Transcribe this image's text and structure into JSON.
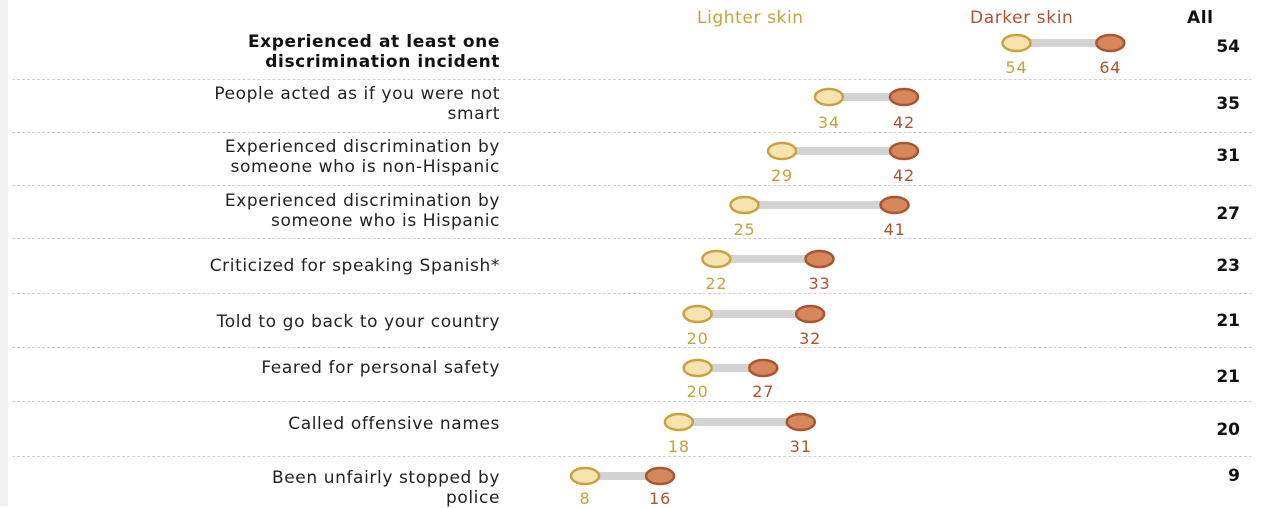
{
  "legend": {
    "lighter": "Lighter skin",
    "darker": "Darker skin",
    "all": "All"
  },
  "colors": {
    "lighter_fill": "#f6e3b0",
    "lighter_stroke": "#c9a13d",
    "lighter_text": "#c9a13d",
    "darker_fill": "#d7875c",
    "darker_stroke": "#a9552d",
    "darker_text": "#a9552d",
    "connector": "#d3d3d3"
  },
  "chart_data": {
    "type": "dot-range",
    "series": [
      {
        "name": "Lighter skin",
        "values": [
          54,
          34,
          29,
          25,
          22,
          20,
          20,
          18,
          8
        ]
      },
      {
        "name": "Darker skin",
        "values": [
          64,
          42,
          42,
          41,
          33,
          32,
          27,
          31,
          16
        ]
      }
    ],
    "rows": [
      {
        "label": "Experienced at least one discrimination incident",
        "lines": [
          "Experienced at least one",
          "discrimination incident"
        ],
        "lighter": 54,
        "darker": 64,
        "all": 54,
        "bold": true
      },
      {
        "label": "People acted as if you were not smart",
        "lines": [
          "People acted as if you were not",
          "smart"
        ],
        "lighter": 34,
        "darker": 42,
        "all": 35,
        "bold": false
      },
      {
        "label": "Experienced discrimination by someone who is non-Hispanic",
        "lines": [
          "Experienced discrimination by",
          "someone who is non-Hispanic"
        ],
        "lighter": 29,
        "darker": 42,
        "all": 31,
        "bold": false
      },
      {
        "label": "Experienced discrimination by someone who is Hispanic",
        "lines": [
          "Experienced discrimination by",
          "someone who is Hispanic"
        ],
        "lighter": 25,
        "darker": 41,
        "all": 27,
        "bold": false
      },
      {
        "label": "Criticized for speaking Spanish*",
        "lines": [
          "Criticized for speaking Spanish*"
        ],
        "lighter": 22,
        "darker": 33,
        "all": 23,
        "bold": false
      },
      {
        "label": "Told to go back to your country",
        "lines": [
          "Told to go back to your country"
        ],
        "lighter": 20,
        "darker": 32,
        "all": 21,
        "bold": false
      },
      {
        "label": "Feared for personal safety",
        "lines": [
          "Feared for personal safety"
        ],
        "lighter": 20,
        "darker": 27,
        "all": 21,
        "bold": false
      },
      {
        "label": "Called offensive names",
        "lines": [
          "Called offensive names"
        ],
        "lighter": 18,
        "darker": 31,
        "all": 20,
        "bold": false
      },
      {
        "label": "Been unfairly stopped by police",
        "lines": [
          "Been unfairly stopped by",
          "police"
        ],
        "lighter": 8,
        "darker": 16,
        "all": 9,
        "bold": false
      }
    ]
  }
}
